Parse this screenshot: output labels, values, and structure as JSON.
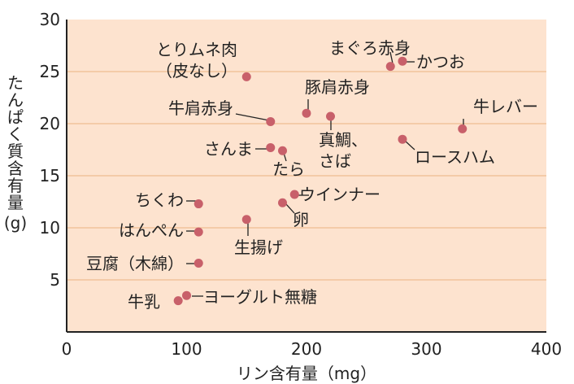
{
  "chart_data": {
    "type": "scatter",
    "xlabel": "リン含有量（mg）",
    "ylabel": "たんぱく質含有量",
    "ylabel_unit": "(g)",
    "xlim": [
      0,
      400
    ],
    "ylim": [
      0,
      30
    ],
    "x_ticks": [
      0,
      100,
      200,
      300,
      400
    ],
    "y_ticks": [
      5,
      10,
      15,
      20,
      25,
      30
    ],
    "grid": "horizontal",
    "colors": {
      "plot_bg": "#fde3cf",
      "grid": "#f2c39c",
      "marker": "#c8606a",
      "axis": "#222222"
    },
    "points": [
      {
        "label": "とりムネ肉\n（皮なし）",
        "x": 150,
        "y": 24.5
      },
      {
        "label": "まぐろ赤身",
        "x": 270,
        "y": 25.5
      },
      {
        "label": "かつお",
        "x": 280,
        "y": 26
      },
      {
        "label": "豚肩赤身",
        "x": 200,
        "y": 21
      },
      {
        "label": "牛肩赤身",
        "x": 170,
        "y": 20.2
      },
      {
        "label": "真鯛、\nさば",
        "x": 220,
        "y": 20.7
      },
      {
        "label": "牛レバー",
        "x": 330,
        "y": 19.5
      },
      {
        "label": "さんま",
        "x": 170,
        "y": 17.7
      },
      {
        "label": "たら",
        "x": 180,
        "y": 17.4
      },
      {
        "label": "ロースハム",
        "x": 280,
        "y": 18.5
      },
      {
        "label": "ちくわ",
        "x": 110,
        "y": 12.3
      },
      {
        "label": "ウインナー",
        "x": 190,
        "y": 13.2
      },
      {
        "label": "卵",
        "x": 180,
        "y": 12.4
      },
      {
        "label": "はんぺん",
        "x": 110,
        "y": 9.6
      },
      {
        "label": "生揚げ",
        "x": 150,
        "y": 10.8
      },
      {
        "label": "豆腐（木綿）",
        "x": 110,
        "y": 6.6
      },
      {
        "label": "牛乳",
        "x": 93,
        "y": 3
      },
      {
        "label": "ヨーグルト無糖",
        "x": 100,
        "y": 3.5
      }
    ]
  }
}
